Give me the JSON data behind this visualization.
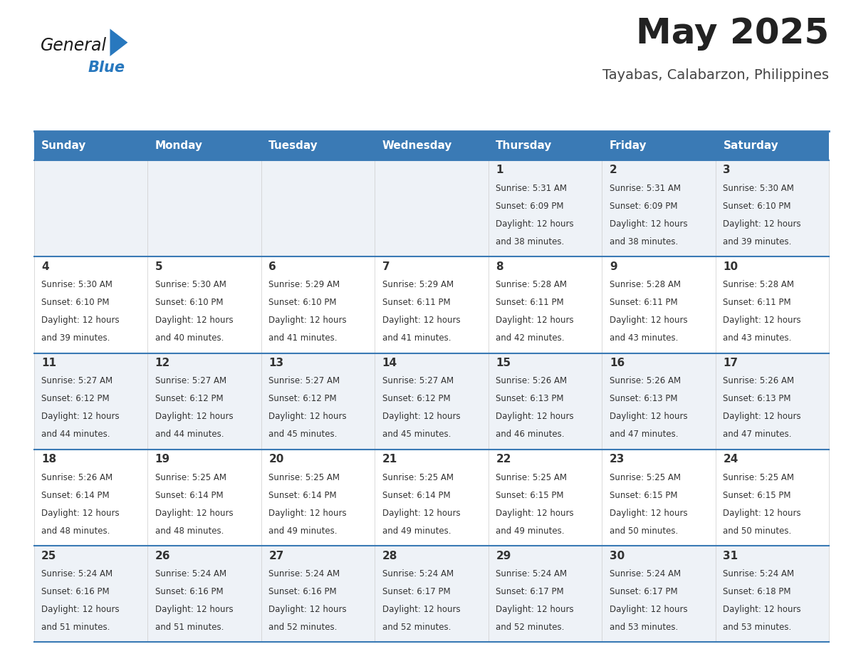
{
  "title": "May 2025",
  "subtitle": "Tayabas, Calabarzon, Philippines",
  "header_bg": "#3a7ab5",
  "header_text": "#ffffff",
  "row_bg_odd": "#eef2f7",
  "row_bg_even": "#ffffff",
  "border_color": "#3a7ab5",
  "day_headers": [
    "Sunday",
    "Monday",
    "Tuesday",
    "Wednesday",
    "Thursday",
    "Friday",
    "Saturday"
  ],
  "calendar_data": [
    [
      {
        "day": "",
        "sunrise": "",
        "sunset": "",
        "daylight": ""
      },
      {
        "day": "",
        "sunrise": "",
        "sunset": "",
        "daylight": ""
      },
      {
        "day": "",
        "sunrise": "",
        "sunset": "",
        "daylight": ""
      },
      {
        "day": "",
        "sunrise": "",
        "sunset": "",
        "daylight": ""
      },
      {
        "day": "1",
        "sunrise": "5:31 AM",
        "sunset": "6:09 PM",
        "daylight": "12 hours and 38 minutes."
      },
      {
        "day": "2",
        "sunrise": "5:31 AM",
        "sunset": "6:09 PM",
        "daylight": "12 hours and 38 minutes."
      },
      {
        "day": "3",
        "sunrise": "5:30 AM",
        "sunset": "6:10 PM",
        "daylight": "12 hours and 39 minutes."
      }
    ],
    [
      {
        "day": "4",
        "sunrise": "5:30 AM",
        "sunset": "6:10 PM",
        "daylight": "12 hours and 39 minutes."
      },
      {
        "day": "5",
        "sunrise": "5:30 AM",
        "sunset": "6:10 PM",
        "daylight": "12 hours and 40 minutes."
      },
      {
        "day": "6",
        "sunrise": "5:29 AM",
        "sunset": "6:10 PM",
        "daylight": "12 hours and 41 minutes."
      },
      {
        "day": "7",
        "sunrise": "5:29 AM",
        "sunset": "6:11 PM",
        "daylight": "12 hours and 41 minutes."
      },
      {
        "day": "8",
        "sunrise": "5:28 AM",
        "sunset": "6:11 PM",
        "daylight": "12 hours and 42 minutes."
      },
      {
        "day": "9",
        "sunrise": "5:28 AM",
        "sunset": "6:11 PM",
        "daylight": "12 hours and 43 minutes."
      },
      {
        "day": "10",
        "sunrise": "5:28 AM",
        "sunset": "6:11 PM",
        "daylight": "12 hours and 43 minutes."
      }
    ],
    [
      {
        "day": "11",
        "sunrise": "5:27 AM",
        "sunset": "6:12 PM",
        "daylight": "12 hours and 44 minutes."
      },
      {
        "day": "12",
        "sunrise": "5:27 AM",
        "sunset": "6:12 PM",
        "daylight": "12 hours and 44 minutes."
      },
      {
        "day": "13",
        "sunrise": "5:27 AM",
        "sunset": "6:12 PM",
        "daylight": "12 hours and 45 minutes."
      },
      {
        "day": "14",
        "sunrise": "5:27 AM",
        "sunset": "6:12 PM",
        "daylight": "12 hours and 45 minutes."
      },
      {
        "day": "15",
        "sunrise": "5:26 AM",
        "sunset": "6:13 PM",
        "daylight": "12 hours and 46 minutes."
      },
      {
        "day": "16",
        "sunrise": "5:26 AM",
        "sunset": "6:13 PM",
        "daylight": "12 hours and 47 minutes."
      },
      {
        "day": "17",
        "sunrise": "5:26 AM",
        "sunset": "6:13 PM",
        "daylight": "12 hours and 47 minutes."
      }
    ],
    [
      {
        "day": "18",
        "sunrise": "5:26 AM",
        "sunset": "6:14 PM",
        "daylight": "12 hours and 48 minutes."
      },
      {
        "day": "19",
        "sunrise": "5:25 AM",
        "sunset": "6:14 PM",
        "daylight": "12 hours and 48 minutes."
      },
      {
        "day": "20",
        "sunrise": "5:25 AM",
        "sunset": "6:14 PM",
        "daylight": "12 hours and 49 minutes."
      },
      {
        "day": "21",
        "sunrise": "5:25 AM",
        "sunset": "6:14 PM",
        "daylight": "12 hours and 49 minutes."
      },
      {
        "day": "22",
        "sunrise": "5:25 AM",
        "sunset": "6:15 PM",
        "daylight": "12 hours and 49 minutes."
      },
      {
        "day": "23",
        "sunrise": "5:25 AM",
        "sunset": "6:15 PM",
        "daylight": "12 hours and 50 minutes."
      },
      {
        "day": "24",
        "sunrise": "5:25 AM",
        "sunset": "6:15 PM",
        "daylight": "12 hours and 50 minutes."
      }
    ],
    [
      {
        "day": "25",
        "sunrise": "5:24 AM",
        "sunset": "6:16 PM",
        "daylight": "12 hours and 51 minutes."
      },
      {
        "day": "26",
        "sunrise": "5:24 AM",
        "sunset": "6:16 PM",
        "daylight": "12 hours and 51 minutes."
      },
      {
        "day": "27",
        "sunrise": "5:24 AM",
        "sunset": "6:16 PM",
        "daylight": "12 hours and 52 minutes."
      },
      {
        "day": "28",
        "sunrise": "5:24 AM",
        "sunset": "6:17 PM",
        "daylight": "12 hours and 52 minutes."
      },
      {
        "day": "29",
        "sunrise": "5:24 AM",
        "sunset": "6:17 PM",
        "daylight": "12 hours and 52 minutes."
      },
      {
        "day": "30",
        "sunrise": "5:24 AM",
        "sunset": "6:17 PM",
        "daylight": "12 hours and 53 minutes."
      },
      {
        "day": "31",
        "sunrise": "5:24 AM",
        "sunset": "6:18 PM",
        "daylight": "12 hours and 53 minutes."
      }
    ]
  ],
  "logo_text_general": "General",
  "logo_text_blue": "Blue",
  "logo_color_general": "#1a1a1a",
  "logo_color_blue": "#2878be",
  "logo_triangle_color": "#2878be",
  "title_fontsize": 36,
  "subtitle_fontsize": 14,
  "header_fontsize": 11,
  "day_num_fontsize": 11,
  "cell_text_fontsize": 8.5
}
